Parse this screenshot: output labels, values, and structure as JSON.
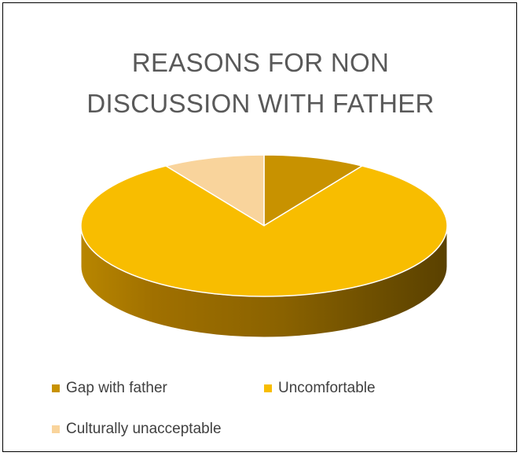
{
  "chart_data": {
    "type": "pie",
    "title_lines": [
      "REASONS FOR NON",
      "DISCUSSION WITH FATHER"
    ],
    "series": [
      {
        "name": "Gap with father",
        "value": 9,
        "color": "#c89200"
      },
      {
        "name": "Uncomfortable",
        "value": 82,
        "color": "#f8bd00"
      },
      {
        "name": "Culturally unacceptable",
        "value": 9,
        "color": "#f9d49c"
      }
    ],
    "legend_position": "bottom",
    "style": "3D pie"
  }
}
